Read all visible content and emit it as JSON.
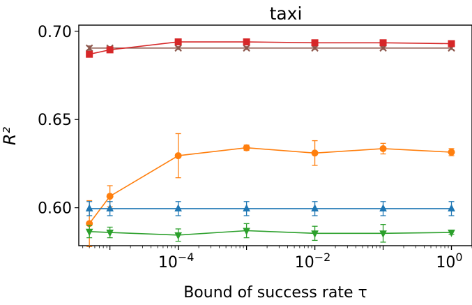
{
  "chart_data": {
    "type": "line",
    "title": "taxi",
    "xlabel": "Bound of success rate τ",
    "ylabel": "R²",
    "xscale": "log",
    "xlim": [
      3.5e-06,
      2.0
    ],
    "ylim": [
      0.5785,
      0.7035
    ],
    "grid": false,
    "legend": "none",
    "x": [
      5e-06,
      1e-05,
      0.0001,
      0.001,
      0.01,
      0.1,
      1
    ],
    "x_ticks": [
      {
        "value": 0.0001,
        "base": "10",
        "exp": "−4"
      },
      {
        "value": 0.01,
        "base": "10",
        "exp": "−2"
      },
      {
        "value": 1,
        "base": "10",
        "exp": "0"
      }
    ],
    "y_ticks": [
      {
        "value": 0.6,
        "label": "0.60"
      },
      {
        "value": 0.65,
        "label": "0.65"
      },
      {
        "value": 0.7,
        "label": "0.70"
      }
    ],
    "series": [
      {
        "color": "#8c564b",
        "marker": "x",
        "values": [
          0.6905,
          0.6905,
          0.6905,
          0.6905,
          0.6905,
          0.6905,
          0.6905
        ],
        "errors": [
          0.0012,
          0.0008,
          0.0008,
          0.0008,
          0.0008,
          0.0008,
          0.0008
        ]
      },
      {
        "color": "#d62728",
        "marker": "s",
        "values": [
          0.687,
          0.6895,
          0.694,
          0.694,
          0.6935,
          0.6935,
          0.693
        ],
        "errors": [
          0.0008,
          0.0008,
          0.0008,
          0.0008,
          0.0008,
          0.0012,
          0.0008
        ]
      },
      {
        "color": "#ff7f0e",
        "marker": "o",
        "values": [
          0.591,
          0.6065,
          0.6295,
          0.634,
          0.631,
          0.6335,
          0.6315
        ],
        "errors": [
          0.013,
          0.006,
          0.0125,
          0.0015,
          0.007,
          0.003,
          0.002
        ]
      },
      {
        "color": "#1f77b4",
        "marker": "^",
        "values": [
          0.5995,
          0.5995,
          0.5995,
          0.5995,
          0.5995,
          0.5995,
          0.5995
        ],
        "errors": [
          0.004,
          0.004,
          0.004,
          0.004,
          0.004,
          0.004,
          0.004
        ]
      },
      {
        "color": "#2ca02c",
        "marker": "v",
        "values": [
          0.5865,
          0.586,
          0.5845,
          0.587,
          0.5855,
          0.5855,
          0.586
        ],
        "errors": [
          0.0035,
          0.003,
          0.0035,
          0.004,
          0.004,
          0.005,
          0.001
        ]
      }
    ]
  }
}
